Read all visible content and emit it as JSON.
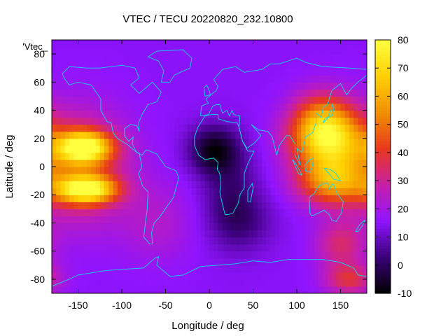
{
  "chart_data": {
    "type": "heatmap",
    "title": "VTEC / TECU 20220820_232.10800",
    "xlabel": "Longitude / deg",
    "ylabel": "Latitude / deg",
    "key_label": "'Vtec_",
    "xlim": [
      -180,
      180
    ],
    "ylim": [
      -90,
      90
    ],
    "xticks": [
      -150,
      -100,
      -50,
      0,
      50,
      100,
      150
    ],
    "yticks": [
      -80,
      -60,
      -40,
      -20,
      0,
      20,
      40,
      60,
      80
    ],
    "colorbar": {
      "range": [
        -10,
        80
      ],
      "ticks": [
        -10,
        0,
        10,
        20,
        30,
        40,
        50,
        60,
        70,
        80
      ],
      "palette": [
        "#000000",
        "#3a0078",
        "#8f14ff",
        "#c81fa8",
        "#e8381c",
        "#f28f00",
        "#ffd000",
        "#ffff40"
      ]
    },
    "background_value": 15,
    "features": [
      {
        "name": "east-pacific-crest-north",
        "lon": -143,
        "lat": 14,
        "peak": 58,
        "sx": 22,
        "sy": 8
      },
      {
        "name": "east-pacific-crest-south",
        "lon": -140,
        "lat": -16,
        "peak": 56,
        "sx": 24,
        "sy": 7
      },
      {
        "name": "east-pacific-belt",
        "lon": -150,
        "lat": 0,
        "peak": 24,
        "sx": 40,
        "sy": 28
      },
      {
        "name": "western-pacific-crest-north",
        "lon": 135,
        "lat": 18,
        "peak": 46,
        "sx": 30,
        "sy": 14
      },
      {
        "name": "western-pacific-crest-south",
        "lon": 140,
        "lat": -10,
        "peak": 40,
        "sx": 28,
        "sy": 12
      },
      {
        "name": "east-asia-high",
        "lon": 130,
        "lat": 35,
        "peak": 30,
        "sx": 25,
        "sy": 14
      },
      {
        "name": "australia-south",
        "lon": 150,
        "lat": -55,
        "peak": 18,
        "sx": 20,
        "sy": 12
      },
      {
        "name": "southern-high-latitude",
        "lon": 160,
        "lat": -80,
        "peak": 22,
        "sx": 20,
        "sy": 8
      },
      {
        "name": "south-america-high",
        "lon": -60,
        "lat": -40,
        "peak": 8,
        "sx": 30,
        "sy": 20
      },
      {
        "name": "africa-trough",
        "lon": 5,
        "lat": 12,
        "peak": -22,
        "sx": 20,
        "sy": 12
      },
      {
        "name": "africa-trough-south",
        "lon": 25,
        "lat": -20,
        "peak": -12,
        "sx": 22,
        "sy": 22
      },
      {
        "name": "indian-ocean-trough",
        "lon": 40,
        "lat": -40,
        "peak": -8,
        "sx": 25,
        "sy": 14
      }
    ],
    "coastlines": [
      {
        "name": "north-america",
        "points": [
          [
            -168,
            66
          ],
          [
            -160,
            71
          ],
          [
            -140,
            70
          ],
          [
            -125,
            70
          ],
          [
            -100,
            72
          ],
          [
            -85,
            70
          ],
          [
            -80,
            63
          ],
          [
            -90,
            58
          ],
          [
            -80,
            52
          ],
          [
            -65,
            60
          ],
          [
            -55,
            53
          ],
          [
            -60,
            46
          ],
          [
            -70,
            44
          ],
          [
            -76,
            38
          ],
          [
            -81,
            31
          ],
          [
            -80,
            25
          ],
          [
            -83,
            29
          ],
          [
            -90,
            30
          ],
          [
            -97,
            27
          ],
          [
            -97,
            22
          ],
          [
            -92,
            18
          ],
          [
            -87,
            21
          ],
          [
            -88,
            16
          ],
          [
            -83,
            10
          ],
          [
            -79,
            9
          ],
          [
            -85,
            11
          ],
          [
            -92,
            15
          ],
          [
            -105,
            20
          ],
          [
            -110,
            24
          ],
          [
            -112,
            31
          ],
          [
            -117,
            32
          ],
          [
            -124,
            40
          ],
          [
            -124,
            48
          ],
          [
            -135,
            58
          ],
          [
            -150,
            60
          ],
          [
            -160,
            58
          ],
          [
            -165,
            62
          ],
          [
            -168,
            66
          ]
        ]
      },
      {
        "name": "greenland",
        "points": [
          [
            -55,
            60
          ],
          [
            -45,
            60
          ],
          [
            -40,
            65
          ],
          [
            -22,
            70
          ],
          [
            -20,
            77
          ],
          [
            -30,
            83
          ],
          [
            -60,
            82
          ],
          [
            -70,
            78
          ],
          [
            -58,
            75
          ],
          [
            -52,
            68
          ],
          [
            -55,
            60
          ]
        ]
      },
      {
        "name": "south-america",
        "points": [
          [
            -80,
            9
          ],
          [
            -77,
            0
          ],
          [
            -81,
            -5
          ],
          [
            -76,
            -14
          ],
          [
            -70,
            -18
          ],
          [
            -71,
            -30
          ],
          [
            -73,
            -40
          ],
          [
            -75,
            -50
          ],
          [
            -68,
            -55
          ],
          [
            -65,
            -55
          ],
          [
            -66,
            -47
          ],
          [
            -63,
            -40
          ],
          [
            -57,
            -36
          ],
          [
            -48,
            -28
          ],
          [
            -41,
            -22
          ],
          [
            -35,
            -8
          ],
          [
            -38,
            -3
          ],
          [
            -50,
            0
          ],
          [
            -60,
            9
          ],
          [
            -72,
            12
          ],
          [
            -77,
            8
          ],
          [
            -80,
            9
          ]
        ]
      },
      {
        "name": "europe-asia",
        "points": [
          [
            -10,
            36
          ],
          [
            -9,
            43
          ],
          [
            -1,
            45
          ],
          [
            -4,
            48
          ],
          [
            2,
            51
          ],
          [
            8,
            54
          ],
          [
            10,
            57
          ],
          [
            5,
            62
          ],
          [
            15,
            69
          ],
          [
            30,
            71
          ],
          [
            40,
            67
          ],
          [
            60,
            69
          ],
          [
            70,
            73
          ],
          [
            80,
            73
          ],
          [
            100,
            77
          ],
          [
            110,
            74
          ],
          [
            130,
            71
          ],
          [
            160,
            70
          ],
          [
            180,
            69
          ],
          [
            180,
            65
          ],
          [
            170,
            60
          ],
          [
            163,
            56
          ],
          [
            157,
            51
          ],
          [
            150,
            59
          ],
          [
            140,
            54
          ],
          [
            135,
            44
          ],
          [
            130,
            42
          ],
          [
            128,
            35
          ],
          [
            122,
            38
          ],
          [
            122,
            31
          ],
          [
            118,
            24
          ],
          [
            110,
            21
          ],
          [
            106,
            10
          ],
          [
            100,
            13
          ],
          [
            104,
            1
          ],
          [
            98,
            8
          ],
          [
            98,
            16
          ],
          [
            92,
            22
          ],
          [
            88,
            22
          ],
          [
            80,
            15
          ],
          [
            77,
            8
          ],
          [
            72,
            21
          ],
          [
            67,
            25
          ],
          [
            57,
            26
          ],
          [
            52,
            28
          ],
          [
            48,
            30
          ],
          [
            55,
            25
          ],
          [
            59,
            22
          ],
          [
            52,
            17
          ],
          [
            43,
            13
          ],
          [
            38,
            18
          ],
          [
            34,
            28
          ],
          [
            35,
            36
          ],
          [
            28,
            37
          ],
          [
            26,
            40
          ],
          [
            23,
            36
          ],
          [
            20,
            40
          ],
          [
            15,
            38
          ],
          [
            12,
            44
          ],
          [
            8,
            44
          ],
          [
            4,
            43
          ],
          [
            -1,
            37
          ],
          [
            -10,
            36
          ]
        ]
      },
      {
        "name": "africa",
        "points": [
          [
            -17,
            21
          ],
          [
            -17,
            15
          ],
          [
            -12,
            8
          ],
          [
            -5,
            5
          ],
          [
            5,
            6
          ],
          [
            10,
            3
          ],
          [
            9,
            -2
          ],
          [
            12,
            -5
          ],
          [
            13,
            -12
          ],
          [
            12,
            -18
          ],
          [
            15,
            -27
          ],
          [
            18,
            -34
          ],
          [
            22,
            -34
          ],
          [
            27,
            -33
          ],
          [
            33,
            -26
          ],
          [
            35,
            -20
          ],
          [
            40,
            -15
          ],
          [
            40,
            -5
          ],
          [
            44,
            2
          ],
          [
            51,
            11
          ],
          [
            44,
            11
          ],
          [
            38,
            18
          ],
          [
            34,
            28
          ],
          [
            32,
            31
          ],
          [
            20,
            32
          ],
          [
            10,
            34
          ],
          [
            10,
            37
          ],
          [
            3,
            37
          ],
          [
            -5,
            36
          ],
          [
            -10,
            31
          ],
          [
            -13,
            28
          ],
          [
            -17,
            21
          ]
        ]
      },
      {
        "name": "australia",
        "points": [
          [
            114,
            -22
          ],
          [
            120,
            -19
          ],
          [
            125,
            -14
          ],
          [
            130,
            -12
          ],
          [
            136,
            -12
          ],
          [
            137,
            -16
          ],
          [
            141,
            -12
          ],
          [
            143,
            -14
          ],
          [
            146,
            -19
          ],
          [
            153,
            -25
          ],
          [
            151,
            -33
          ],
          [
            145,
            -39
          ],
          [
            140,
            -38
          ],
          [
            137,
            -34
          ],
          [
            131,
            -31
          ],
          [
            125,
            -33
          ],
          [
            117,
            -35
          ],
          [
            115,
            -33
          ],
          [
            114,
            -22
          ]
        ]
      },
      {
        "name": "antarctica",
        "points": [
          [
            -180,
            -85
          ],
          [
            -160,
            -80
          ],
          [
            -150,
            -77
          ],
          [
            -120,
            -74
          ],
          [
            -100,
            -73
          ],
          [
            -75,
            -72
          ],
          [
            -62,
            -65
          ],
          [
            -58,
            -64
          ],
          [
            -60,
            -70
          ],
          [
            -45,
            -78
          ],
          [
            -30,
            -77
          ],
          [
            -10,
            -71
          ],
          [
            10,
            -70
          ],
          [
            30,
            -69
          ],
          [
            50,
            -67
          ],
          [
            70,
            -68
          ],
          [
            90,
            -66
          ],
          [
            110,
            -66
          ],
          [
            130,
            -66
          ],
          [
            150,
            -68
          ],
          [
            165,
            -72
          ],
          [
            170,
            -77
          ],
          [
            180,
            -78
          ]
        ]
      },
      {
        "name": "madagascar",
        "points": [
          [
            44,
            -25
          ],
          [
            47,
            -25
          ],
          [
            50,
            -15
          ],
          [
            49,
            -12
          ],
          [
            44,
            -17
          ],
          [
            44,
            -25
          ]
        ]
      },
      {
        "name": "japan",
        "points": [
          [
            130,
            31
          ],
          [
            132,
            34
          ],
          [
            136,
            35
          ],
          [
            140,
            36
          ],
          [
            142,
            40
          ],
          [
            141,
            45
          ],
          [
            139,
            40
          ],
          [
            135,
            34
          ],
          [
            130,
            31
          ]
        ]
      },
      {
        "name": "indonesia",
        "points": [
          [
            95,
            5
          ],
          [
            100,
            1
          ],
          [
            106,
            -6
          ],
          [
            102,
            -5
          ],
          [
            95,
            5
          ]
        ]
      },
      {
        "name": "borneo",
        "points": [
          [
            109,
            1
          ],
          [
            115,
            5
          ],
          [
            119,
            6
          ],
          [
            118,
            1
          ],
          [
            115,
            -4
          ],
          [
            110,
            -3
          ],
          [
            109,
            1
          ]
        ]
      },
      {
        "name": "new-guinea",
        "points": [
          [
            131,
            -1
          ],
          [
            138,
            -2
          ],
          [
            145,
            -5
          ],
          [
            150,
            -10
          ],
          [
            142,
            -9
          ],
          [
            137,
            -5
          ],
          [
            131,
            -1
          ]
        ]
      },
      {
        "name": "new-zealand",
        "points": [
          [
            167,
            -46
          ],
          [
            172,
            -41
          ],
          [
            178,
            -38
          ],
          [
            175,
            -42
          ],
          [
            170,
            -46
          ],
          [
            167,
            -46
          ]
        ]
      },
      {
        "name": "british-isles",
        "points": [
          [
            -5,
            50
          ],
          [
            1,
            51
          ],
          [
            0,
            54
          ],
          [
            -3,
            58
          ],
          [
            -6,
            56
          ],
          [
            -5,
            50
          ]
        ]
      }
    ]
  }
}
